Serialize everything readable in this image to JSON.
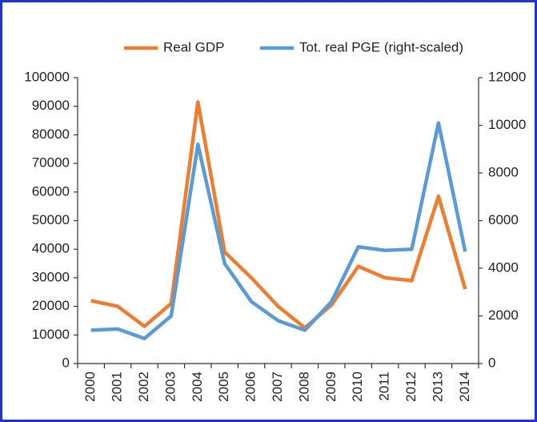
{
  "chart_data": {
    "type": "line",
    "categories": [
      "2000",
      "2001",
      "2002",
      "2003",
      "2004",
      "2005",
      "2006",
      "2007",
      "2008",
      "2009",
      "2010",
      "2011",
      "2012",
      "2013",
      "2014"
    ],
    "series": [
      {
        "name": "Real GDP",
        "color": "#ED7D31",
        "values": [
          22000,
          20000,
          13000,
          21000,
          91500,
          39000,
          30000,
          20000,
          12500,
          20500,
          34000,
          30000,
          29000,
          58500,
          26000
        ]
      },
      {
        "name": "Tot. real PGE (right-scaled)",
        "color": "#5B9BD5",
        "axis": "y2",
        "values": [
          1400,
          1450,
          1050,
          2000,
          9200,
          4200,
          2600,
          1800,
          1400,
          2600,
          4900,
          4750,
          4800,
          10100,
          4700
        ]
      }
    ],
    "ylim": [
      0,
      100000
    ],
    "yticks": [
      0,
      10000,
      20000,
      30000,
      40000,
      50000,
      60000,
      70000,
      80000,
      90000,
      100000
    ],
    "y2lim": [
      0,
      12000
    ],
    "y2ticks": [
      0,
      2000,
      4000,
      6000,
      8000,
      10000,
      12000
    ]
  }
}
